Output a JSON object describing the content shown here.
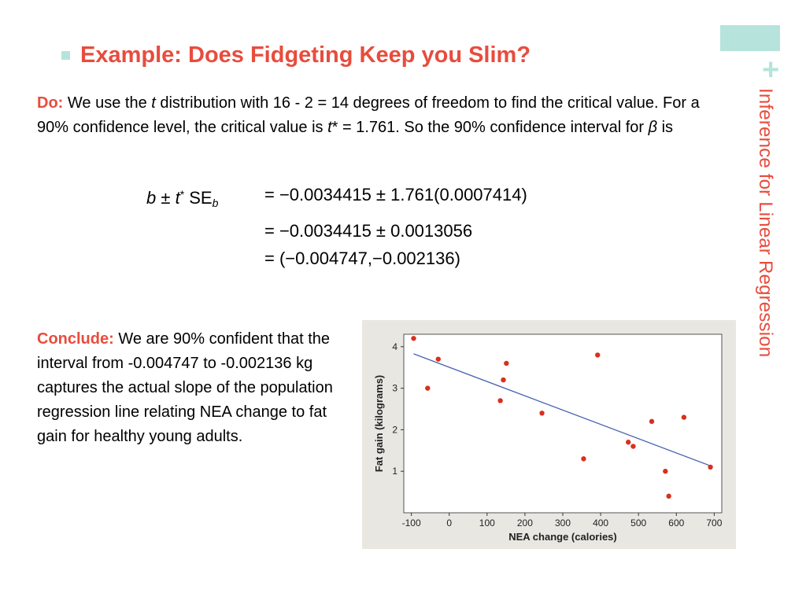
{
  "side_title": "Inference for Linear Regression",
  "title": "Example: Does Fidgeting Keep you Slim?",
  "do_section": {
    "lead": "Do:",
    "text_1": " We use the ",
    "t_symbol": "t",
    "text_2": " distribution with 16 - 2 = 14 degrees of freedom to find the critical value. For a 90% confidence level, the critical value is ",
    "tstar_symbol": "t",
    "star": "*",
    "text_3": " = 1.761. So the 90% confidence interval for ",
    "beta_symbol": "β",
    "text_4": " is"
  },
  "formula": {
    "b": "b",
    "pm": " ± ",
    "t": "t",
    "star": "*",
    "se": " SE",
    "sub_b": "b",
    "line_1": "= −0.0034415 ± 1.761(0.0007414)",
    "line_2": "= −0.0034415 ± 0.0013056",
    "line_3": "= (−0.004747,−0.002136)"
  },
  "conclude_section": {
    "lead": "Conclude:",
    "text": " We are 90% confident that the interval from -0.004747 to -0.002136 kg captures the actual slope of the population regression line relating NEA change to fat gain for healthy young adults."
  },
  "colors": {
    "accent_red": "#e84c3d",
    "accent_teal": "#b6e4dc",
    "point": "#d9301e",
    "line": "#4a63b0",
    "chart_bg": "#e9e7e2"
  },
  "chart_data": {
    "type": "scatter",
    "xlabel": "NEA change (calories)",
    "ylabel": "Fat gain (kilograms)",
    "xlim": [
      -120,
      720
    ],
    "ylim": [
      0,
      4.3
    ],
    "x_ticks": [
      "-100",
      "0",
      "100",
      "200",
      "300",
      "400",
      "500",
      "600",
      "700"
    ],
    "y_ticks": [
      "1",
      "2",
      "3",
      "4"
    ],
    "grid": false,
    "points": [
      {
        "x": -94,
        "y": 4.2
      },
      {
        "x": -57,
        "y": 3.0
      },
      {
        "x": -29,
        "y": 3.7
      },
      {
        "x": 135,
        "y": 2.7
      },
      {
        "x": 143,
        "y": 3.2
      },
      {
        "x": 151,
        "y": 3.6
      },
      {
        "x": 245,
        "y": 2.4
      },
      {
        "x": 355,
        "y": 1.3
      },
      {
        "x": 392,
        "y": 3.8
      },
      {
        "x": 473,
        "y": 1.7
      },
      {
        "x": 486,
        "y": 1.6
      },
      {
        "x": 535,
        "y": 2.2
      },
      {
        "x": 571,
        "y": 1.0
      },
      {
        "x": 580,
        "y": 0.4
      },
      {
        "x": 620,
        "y": 2.3
      },
      {
        "x": 690,
        "y": 1.1
      }
    ],
    "regression_line": {
      "intercept": 3.505,
      "slope": -0.0034415
    }
  }
}
